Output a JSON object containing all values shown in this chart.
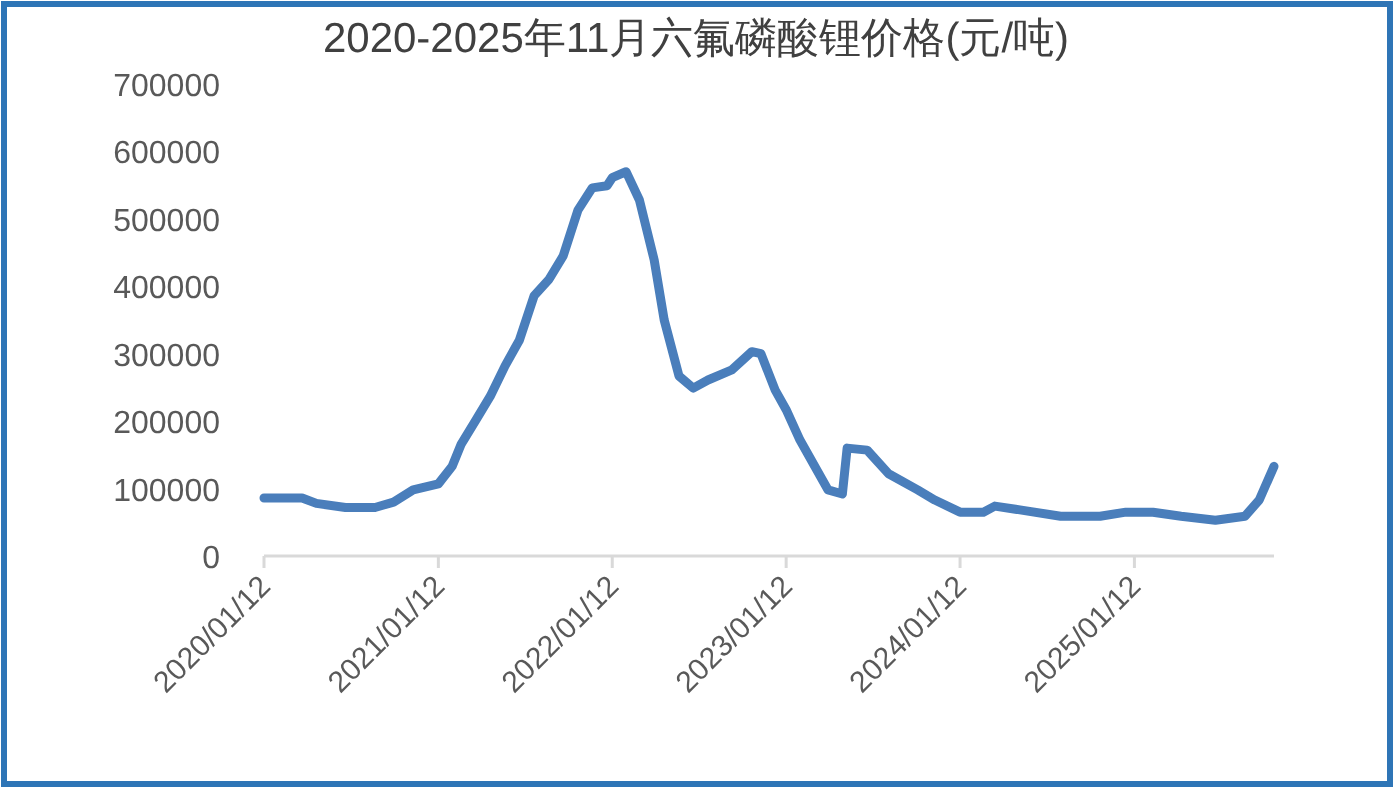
{
  "chart_data": {
    "type": "line",
    "title": "2020-2025年11月六氟磷酸锂价格(元/吨)",
    "x": [
      "2020-01-12",
      "2020-04-01",
      "2020-05-01",
      "2020-07-01",
      "2020-09-01",
      "2020-10-10",
      "2020-11-20",
      "2021-01-12",
      "2021-02-10",
      "2021-03-01",
      "2021-04-01",
      "2021-05-01",
      "2021-06-01",
      "2021-07-01",
      "2021-08-01",
      "2021-09-01",
      "2021-10-01",
      "2021-11-01",
      "2021-12-01",
      "2022-01-01",
      "2022-01-12",
      "2022-02-10",
      "2022-03-10",
      "2022-04-10",
      "2022-05-01",
      "2022-06-01",
      "2022-07-01",
      "2022-08-01",
      "2022-09-20",
      "2022-11-01",
      "2022-11-20",
      "2022-12-20",
      "2023-01-12",
      "2023-02-10",
      "2023-04-10",
      "2023-05-10",
      "2023-05-20",
      "2023-07-01",
      "2023-08-15",
      "2023-10-15",
      "2023-11-20",
      "2024-01-12",
      "2024-03-01",
      "2024-03-25",
      "2024-05-20",
      "2024-08-10",
      "2024-11-01",
      "2024-12-25",
      "2025-02-20",
      "2025-04-20",
      "2025-07-01",
      "2025-09-01",
      "2025-10-01",
      "2025-11-01"
    ],
    "series": [
      {
        "color": "#4a7ebb",
        "values": [
          86000,
          86000,
          78000,
          72000,
          72000,
          80000,
          98000,
          107000,
          133000,
          166000,
          202000,
          237000,
          282000,
          320000,
          386000,
          410000,
          445000,
          513000,
          546000,
          549000,
          561000,
          570000,
          528000,
          439000,
          350000,
          267000,
          249000,
          261000,
          276000,
          303000,
          300000,
          246000,
          217000,
          172000,
          98000,
          92000,
          160000,
          157000,
          122000,
          98000,
          83000,
          65000,
          65000,
          74000,
          68000,
          59000,
          59000,
          65000,
          65000,
          59000,
          53000,
          59000,
          83000,
          133000
        ]
      }
    ],
    "xlim": [
      "2020-01-12",
      "2025-11-01"
    ],
    "xticks": [
      {
        "value": "2020-01-12",
        "label": "2020/01/12"
      },
      {
        "value": "2021-01-12",
        "label": "2021/01/12"
      },
      {
        "value": "2022-01-12",
        "label": "2022/01/12"
      },
      {
        "value": "2023-01-12",
        "label": "2023/01/12"
      },
      {
        "value": "2024-01-12",
        "label": "2024/01/12"
      },
      {
        "value": "2025-01-12",
        "label": "2025/01/12"
      }
    ],
    "ylim": [
      0,
      700000
    ],
    "yticks": [
      0,
      100000,
      200000,
      300000,
      400000,
      500000,
      600000,
      700000
    ],
    "grid": false,
    "marker": "none",
    "line_style": "solid"
  }
}
